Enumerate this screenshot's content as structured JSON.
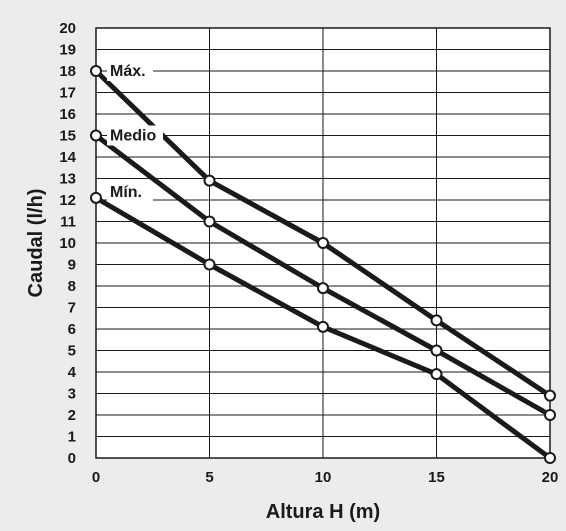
{
  "chart_data": {
    "type": "line",
    "xlabel": "Altura H (m)",
    "ylabel": "Caudal (l/h)",
    "xlim": [
      0,
      20
    ],
    "ylim": [
      0,
      20
    ],
    "x_ticks": [
      0,
      5,
      10,
      15,
      20
    ],
    "y_ticks": [
      0,
      1,
      2,
      3,
      4,
      5,
      6,
      7,
      8,
      9,
      10,
      11,
      12,
      13,
      14,
      15,
      16,
      17,
      18,
      19,
      20
    ],
    "grid": true,
    "series": [
      {
        "name": "Máx.",
        "x": [
          0,
          5,
          10,
          15,
          20
        ],
        "y": [
          18,
          12.9,
          10,
          6.4,
          2.9
        ]
      },
      {
        "name": "Medio",
        "x": [
          0,
          5,
          10,
          15,
          20
        ],
        "y": [
          15,
          11,
          7.9,
          5,
          2
        ]
      },
      {
        "name": "Mín.",
        "x": [
          0,
          5,
          10,
          15,
          20
        ],
        "y": [
          12.1,
          9,
          6.1,
          3.9,
          0
        ]
      }
    ]
  },
  "colors": {
    "background": "#ececec",
    "plot_background": "#ffffff",
    "grid": "#1a1a1a",
    "line": "#1a1a1a",
    "marker_fill": "#ffffff"
  }
}
